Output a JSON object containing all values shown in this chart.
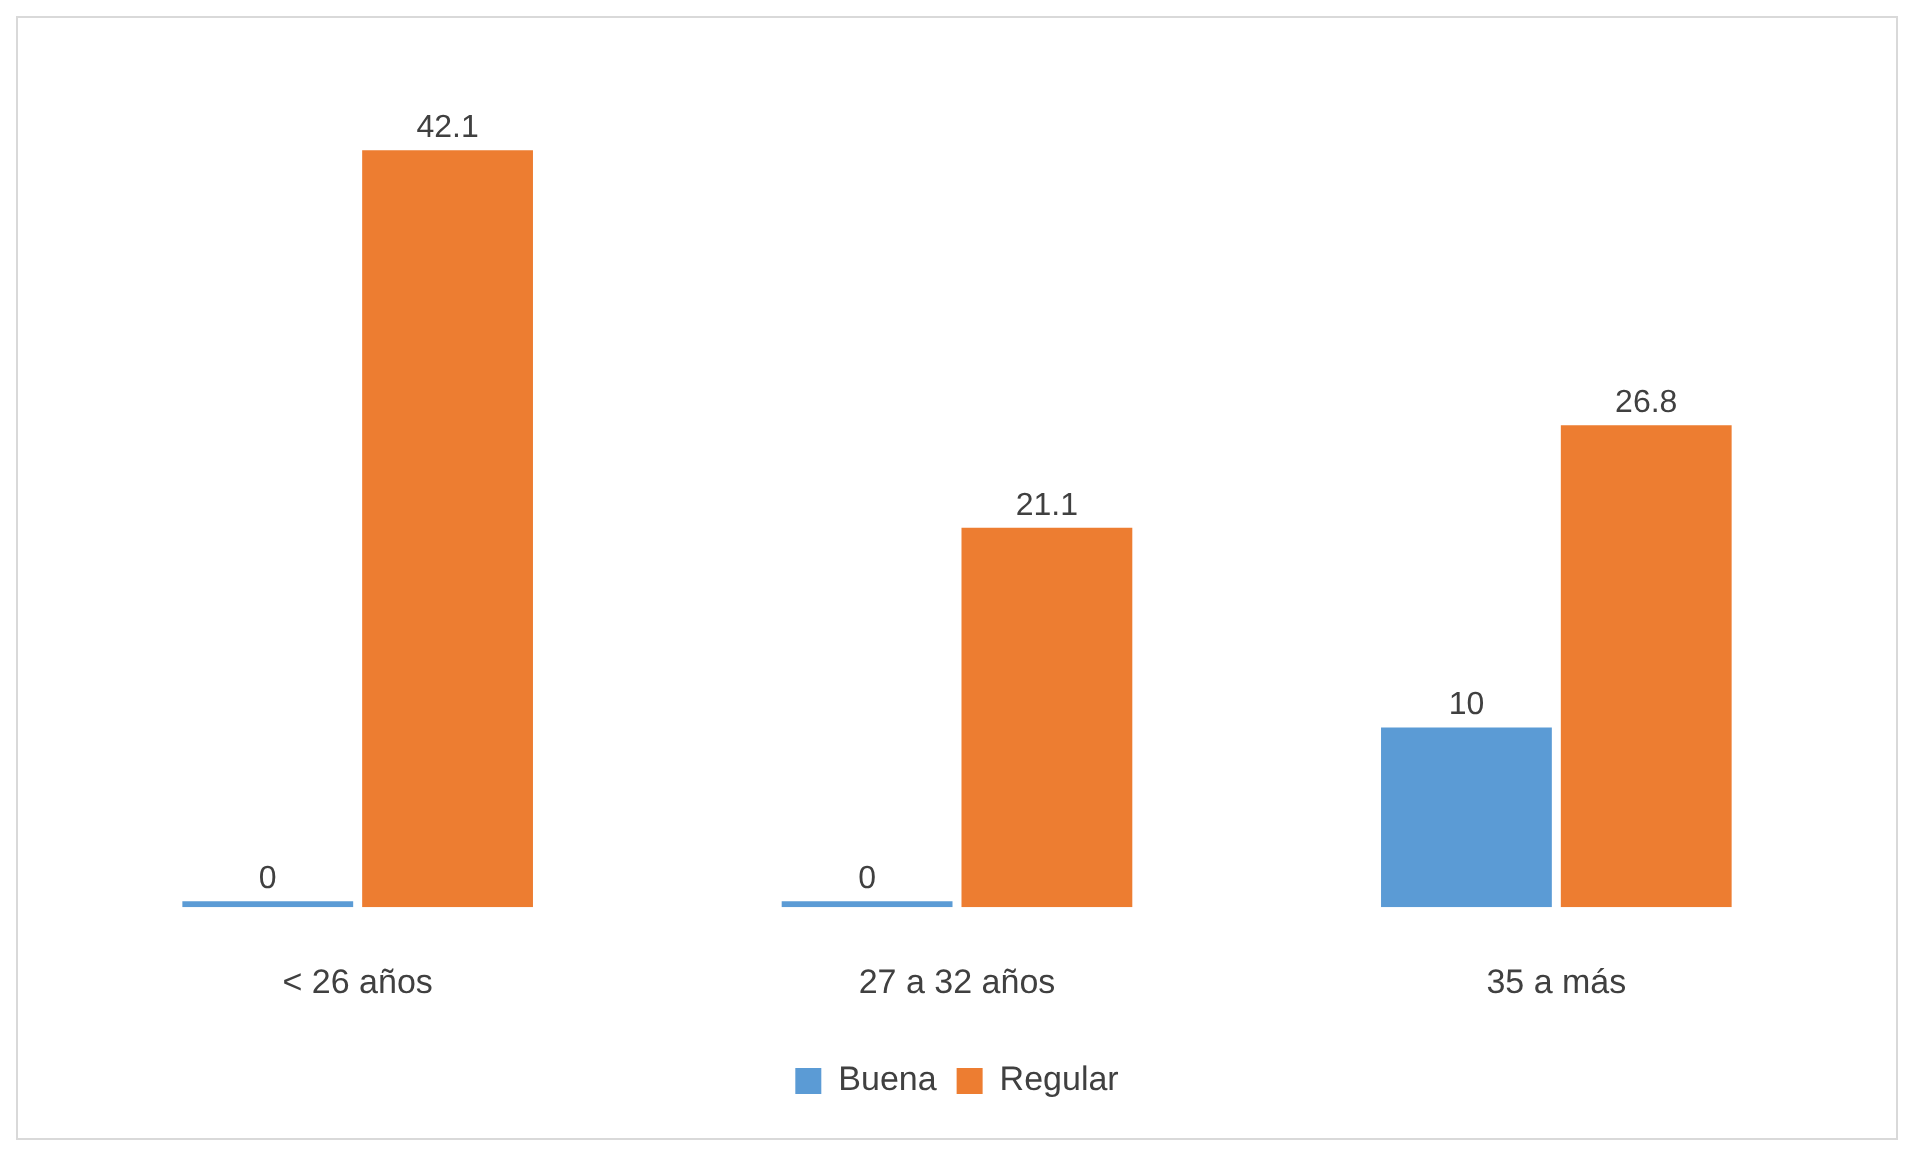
{
  "chart_data": {
    "type": "bar",
    "categories": [
      "< 26 años",
      "27 a 32 años",
      "35 a más"
    ],
    "series": [
      {
        "name": "Buena",
        "color": "#5b9bd5",
        "values": [
          0,
          0,
          10
        ]
      },
      {
        "name": "Regular",
        "color": "#ed7d31",
        "values": [
          42.1,
          21.1,
          26.8
        ]
      }
    ],
    "data_labels": true,
    "legend": "bottom",
    "grid": false
  }
}
